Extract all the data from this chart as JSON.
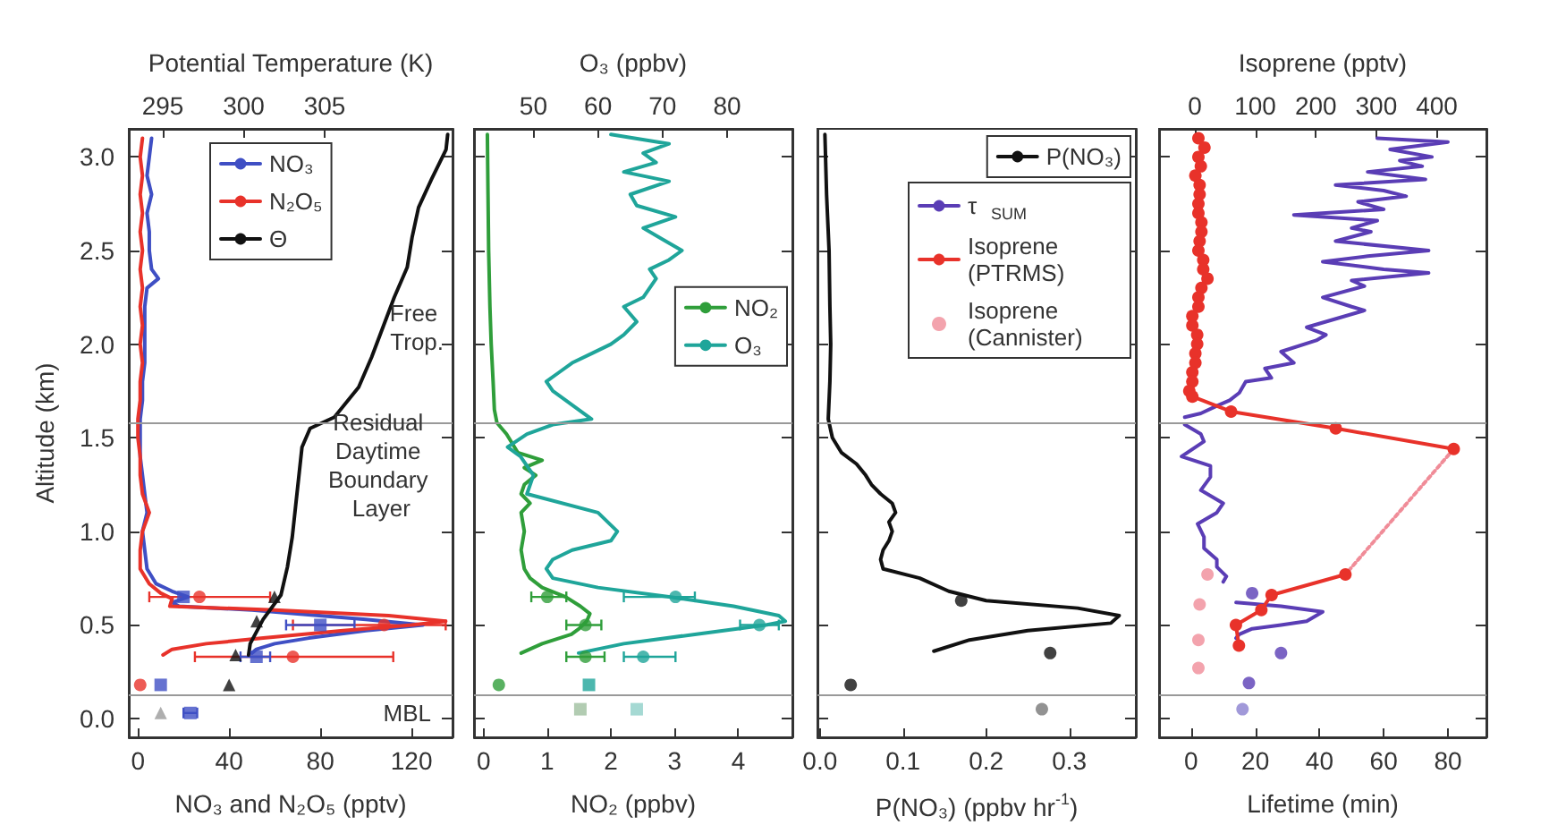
{
  "chart_data": [
    {
      "type": "line",
      "xlabel": "NO₃ and N₂O₅ (pptv)",
      "x2label": "Potential Temperature (K)",
      "ylabel": "Altitude (km)",
      "xlim": [
        -4,
        138
      ],
      "xticks": [
        0,
        40,
        80,
        120
      ],
      "x2lim": [
        292.9,
        312.9
      ],
      "x2ticks": [
        295,
        300,
        305
      ],
      "ylim": [
        -0.1,
        3.15
      ],
      "yticks": [
        {
          "value": 0,
          "label": "0.0"
        },
        {
          "value": 0.5,
          "label": "0.5"
        },
        {
          "value": 1,
          "label": "1.0"
        },
        {
          "value": 1.5,
          "label": "1.5"
        },
        {
          "value": 2,
          "label": "2.0"
        },
        {
          "value": 2.5,
          "label": "2.5"
        },
        {
          "value": 3,
          "label": "3.0"
        }
      ],
      "legend": "top",
      "ref_lines": [
        {
          "axis": "y",
          "value": 1.58,
          "color": "#999999"
        },
        {
          "axis": "y",
          "value": 0.13,
          "color": "#999999"
        }
      ],
      "annotations": [
        "Free Trop.",
        "Residual Daytime Boundary Layer",
        "MBL"
      ],
      "series": [
        {
          "name": "NO₃",
          "color": "#3f4fc4",
          "x": [
            6,
            5,
            4,
            6,
            4,
            5,
            5,
            6,
            9,
            4,
            3,
            3,
            3,
            3,
            2,
            2,
            1,
            1,
            1,
            2,
            3,
            4,
            2,
            3,
            4,
            8,
            15,
            22,
            15,
            18,
            50,
            70,
            100,
            125,
            100,
            75,
            60,
            52,
            50
          ],
          "values": [
            3.1,
            3.0,
            2.9,
            2.8,
            2.7,
            2.6,
            2.5,
            2.4,
            2.35,
            2.3,
            2.2,
            2.1,
            2.0,
            1.9,
            1.8,
            1.7,
            1.6,
            1.5,
            1.4,
            1.3,
            1.2,
            1.1,
            1.0,
            0.9,
            0.8,
            0.72,
            0.68,
            0.65,
            0.62,
            0.6,
            0.58,
            0.56,
            0.53,
            0.5,
            0.47,
            0.43,
            0.4,
            0.37,
            0.35
          ]
        },
        {
          "name": "N₂O₅",
          "color": "#e8322a",
          "x": [
            2,
            1,
            2,
            1,
            2,
            1,
            2,
            1,
            2,
            1,
            2,
            1,
            2,
            1,
            1,
            0,
            0,
            1,
            1,
            2,
            5,
            2,
            1,
            1,
            5,
            10,
            15,
            14,
            60,
            110,
            135,
            120,
            90,
            55,
            30,
            15,
            11
          ],
          "values": [
            3.1,
            3.0,
            2.9,
            2.8,
            2.7,
            2.6,
            2.5,
            2.4,
            2.3,
            2.2,
            2.1,
            2.0,
            1.9,
            1.8,
            1.7,
            1.6,
            1.5,
            1.4,
            1.3,
            1.2,
            1.1,
            1.0,
            0.9,
            0.8,
            0.72,
            0.67,
            0.64,
            0.6,
            0.58,
            0.55,
            0.52,
            0.5,
            0.47,
            0.43,
            0.4,
            0.37,
            0.34
          ]
        },
        {
          "name": "Θ",
          "color": "#111111",
          "axis": "x2",
          "x": [
            312.6,
            312.5,
            311.6,
            310.8,
            310.4,
            310.1,
            309.3,
            308.6,
            307.9,
            307.1,
            305.6,
            304.1,
            303.6,
            303.4,
            303.2,
            303.0,
            302.7,
            302.3,
            301.2,
            300.4,
            300.3
          ],
          "values": [
            3.12,
            3.04,
            2.88,
            2.73,
            2.57,
            2.41,
            2.25,
            2.09,
            1.93,
            1.77,
            1.61,
            1.55,
            1.45,
            1.29,
            1.13,
            0.97,
            0.81,
            0.66,
            0.53,
            0.4,
            0.34
          ]
        },
        {
          "type": "scatter",
          "marker": "circle",
          "color": "#e8322a",
          "x": [
            27,
            108,
            68,
            1
          ],
          "values": [
            0.65,
            0.5,
            0.33,
            0.18
          ],
          "xerrors": [
            [
              5,
              58
            ],
            [
              68,
              135
            ],
            [
              25,
              112
            ],
            null
          ]
        },
        {
          "type": "scatter",
          "marker": "square",
          "color": "#3f4fc4",
          "x": [
            20,
            80,
            52,
            10
          ],
          "values": [
            0.65,
            0.5,
            0.33,
            0.18
          ],
          "xerrors": [
            null,
            [
              65,
              95
            ],
            [
              45,
              58
            ],
            null
          ]
        },
        {
          "type": "scatter",
          "marker": "triangle",
          "color": "#111111",
          "axis": "x2",
          "x": [
            301.9,
            300.8,
            299.5,
            299.1
          ],
          "values": [
            0.65,
            0.52,
            0.34,
            0.18
          ]
        },
        {
          "type": "scatter",
          "marker": "triangle",
          "color": "#9a9a9a",
          "x": [
            10
          ],
          "values": [
            0.03
          ]
        },
        {
          "type": "scatter",
          "marker": "square",
          "color": "#3f4fc4",
          "x": [
            23
          ],
          "values": [
            0.03
          ],
          "xerrors": [
            [
              20,
              26
            ]
          ]
        }
      ]
    },
    {
      "type": "line",
      "xlabel": "NO₂ (ppbv)",
      "x2label": "O₃ (ppbv)",
      "xlim": [
        -0.15,
        4.85
      ],
      "xticks": [
        0,
        1,
        2,
        3,
        4
      ],
      "x2lim": [
        40.8,
        90.1
      ],
      "x2ticks": [
        50,
        60,
        70,
        80
      ],
      "ylim": [
        -0.1,
        3.15
      ],
      "yticks": [
        {
          "value": 0,
          "label": "0.0"
        },
        {
          "value": 0.5,
          "label": "0.5"
        },
        {
          "value": 1,
          "label": "1.0"
        },
        {
          "value": 1.5,
          "label": "1.5"
        },
        {
          "value": 2,
          "label": "2.0"
        },
        {
          "value": 2.5,
          "label": "2.5"
        },
        {
          "value": 3,
          "label": "3.0"
        }
      ],
      "tick_labels": "x",
      "legend": "right",
      "ref_lines": [
        {
          "axis": "y",
          "value": 1.58,
          "color": "#999999"
        },
        {
          "axis": "y",
          "value": 0.13,
          "color": "#999999"
        }
      ],
      "series": [
        {
          "name": "NO₂",
          "color": "#2f9e3a",
          "x": [
            0.06,
            0.07,
            0.08,
            0.1,
            0.12,
            0.15,
            0.17,
            0.21,
            0.36,
            0.45,
            0.54,
            0.92,
            0.64,
            0.82,
            0.64,
            0.59,
            0.73,
            0.59,
            0.64,
            0.59,
            0.64,
            0.73,
            0.92,
            1.29,
            1.52,
            1.67,
            1.62,
            1.5,
            1.38,
            0.92,
            0.59
          ],
          "values": [
            3.12,
            2.8,
            2.5,
            2.2,
            2.0,
            1.8,
            1.65,
            1.58,
            1.52,
            1.47,
            1.42,
            1.38,
            1.34,
            1.3,
            1.25,
            1.2,
            1.15,
            1.1,
            1.0,
            0.9,
            0.8,
            0.75,
            0.7,
            0.65,
            0.6,
            0.56,
            0.52,
            0.48,
            0.45,
            0.4,
            0.35
          ]
        },
        {
          "name": "O₃",
          "color": "#1fa59a",
          "axis": "x2",
          "x": [
            62,
            71,
            67,
            69,
            64,
            71,
            65,
            66,
            72,
            67,
            70,
            73,
            71,
            68,
            69,
            67,
            64,
            66,
            64,
            62,
            59,
            56,
            54,
            52,
            53,
            55,
            57,
            59,
            53,
            49,
            46,
            48,
            50,
            49,
            60,
            63,
            62,
            56,
            53,
            52,
            53,
            60,
            71,
            81,
            88,
            89,
            86,
            75,
            64,
            57
          ],
          "values": [
            3.12,
            3.07,
            3.02,
            2.97,
            2.92,
            2.87,
            2.8,
            2.74,
            2.68,
            2.62,
            2.56,
            2.5,
            2.45,
            2.4,
            2.35,
            2.25,
            2.2,
            2.12,
            2.05,
            2.0,
            1.95,
            1.9,
            1.85,
            1.8,
            1.75,
            1.7,
            1.65,
            1.6,
            1.57,
            1.52,
            1.45,
            1.4,
            1.3,
            1.2,
            1.1,
            1.0,
            0.95,
            0.9,
            0.85,
            0.8,
            0.75,
            0.7,
            0.65,
            0.6,
            0.55,
            0.52,
            0.5,
            0.45,
            0.4,
            0.35
          ]
        },
        {
          "type": "scatter",
          "marker": "circle",
          "color": "#2f9e3a",
          "x": [
            1.0,
            1.6,
            1.6,
            0.24
          ],
          "values": [
            0.65,
            0.5,
            0.33,
            0.18
          ],
          "xerrors": [
            [
              0.75,
              1.3
            ],
            [
              1.3,
              1.85
            ],
            [
              1.3,
              1.9
            ],
            null
          ]
        },
        {
          "type": "scatter",
          "marker": "circle",
          "color": "#1fa59a",
          "axis": "x2",
          "x": [
            72,
            85,
            67
          ],
          "values": [
            0.65,
            0.5,
            0.33
          ],
          "xerrors": [
            [
              64,
              75
            ],
            [
              82,
              88
            ],
            [
              64,
              72
            ]
          ]
        },
        {
          "type": "scatter",
          "marker": "square",
          "color": "#1fa59a",
          "axis": "x2",
          "x": [
            58.6
          ],
          "values": [
            0.18
          ]
        },
        {
          "type": "scatter",
          "marker": "square",
          "color": "#9fbf9f",
          "x": [
            1.52
          ],
          "values": [
            0.05
          ]
        },
        {
          "type": "scatter",
          "marker": "square",
          "color": "#8fcfc8",
          "axis": "x2",
          "x": [
            66
          ],
          "values": [
            0.05
          ]
        }
      ]
    },
    {
      "type": "line",
      "xlabel": "P(NO₃) (ppbv hr$^{-1}$)",
      "xlim": [
        -0.003,
        0.38
      ],
      "xticks": [
        {
          "value": 0,
          "label": "0.0"
        },
        {
          "value": 0.1,
          "label": "0.1"
        },
        {
          "value": 0.2,
          "label": "0.2"
        },
        {
          "value": 0.3,
          "label": "0.3"
        }
      ],
      "ylim": [
        -0.1,
        3.15
      ],
      "yticks": [
        {
          "value": 0,
          "label": "0.0"
        },
        {
          "value": 0.5,
          "label": "0.5"
        },
        {
          "value": 1,
          "label": "1.0"
        },
        {
          "value": 1.5,
          "label": "1.5"
        },
        {
          "value": 2,
          "label": "2.0"
        },
        {
          "value": 2.5,
          "label": "2.5"
        },
        {
          "value": 3,
          "label": "3.0"
        }
      ],
      "tick_labels": "x",
      "legend": "top right",
      "ref_lines": [
        {
          "axis": "y",
          "value": 1.58,
          "color": "#999999"
        },
        {
          "axis": "y",
          "value": 0.13,
          "color": "#999999"
        }
      ],
      "series": [
        {
          "name": "P(NO₃)",
          "color": "#111111",
          "x": [
            0.006,
            0.008,
            0.011,
            0.012,
            0.013,
            0.012,
            0.01,
            0.015,
            0.026,
            0.044,
            0.055,
            0.062,
            0.073,
            0.087,
            0.091,
            0.083,
            0.087,
            0.083,
            0.076,
            0.073,
            0.076,
            0.12,
            0.155,
            0.2,
            0.31,
            0.36,
            0.35,
            0.25,
            0.18,
            0.137
          ],
          "values": [
            3.12,
            2.8,
            2.5,
            2.2,
            2.0,
            1.8,
            1.6,
            1.5,
            1.42,
            1.36,
            1.3,
            1.25,
            1.2,
            1.15,
            1.1,
            1.05,
            1.0,
            0.95,
            0.9,
            0.85,
            0.8,
            0.75,
            0.68,
            0.63,
            0.59,
            0.55,
            0.51,
            0.47,
            0.42,
            0.36
          ]
        },
        {
          "type": "scatter",
          "marker": "circle",
          "color": "#111111",
          "x": [
            0.17,
            0.277,
            0.037
          ],
          "values": [
            0.63,
            0.35,
            0.18
          ]
        },
        {
          "type": "scatter",
          "marker": "circle",
          "color": "#777777",
          "x": [
            0.267
          ],
          "values": [
            0.05
          ]
        }
      ]
    },
    {
      "type": "line",
      "xlabel": "Lifetime (min)",
      "x2label": "Isoprene (pptv)",
      "xlim": [
        -10,
        92
      ],
      "xticks": [
        0,
        20,
        40,
        60,
        80
      ],
      "x2lim": [
        -59,
        482
      ],
      "x2ticks": [
        0,
        100,
        200,
        300,
        400
      ],
      "ylim": [
        -0.1,
        3.15
      ],
      "yticks": [
        {
          "value": 0,
          "label": "0.0"
        },
        {
          "value": 0.5,
          "label": "0.5"
        },
        {
          "value": 1,
          "label": "1.0"
        },
        {
          "value": 1.5,
          "label": "1.5"
        },
        {
          "value": 2,
          "label": "2.0"
        },
        {
          "value": 2.5,
          "label": "2.5"
        },
        {
          "value": 3,
          "label": "3.0"
        }
      ],
      "tick_labels": "x",
      "legend": "left",
      "ref_lines": [
        {
          "axis": "y",
          "value": 1.58,
          "color": "#999999"
        },
        {
          "axis": "y",
          "value": 0.13,
          "color": "#999999"
        }
      ],
      "series": [
        {
          "name": "τ$_{SUM}$",
          "color": "#5a3db5",
          "x": [
            58,
            80,
            62,
            75,
            65,
            72,
            55,
            73,
            45,
            60,
            67,
            52,
            60,
            32,
            58,
            50,
            56,
            45,
            74,
            55,
            41,
            60,
            74,
            50,
            54,
            41,
            50,
            54,
            42,
            36,
            42,
            39,
            28,
            32,
            23,
            25,
            17,
            15,
            12,
            8,
            3,
            -2,
            null,
            -2,
            3,
            4,
            -3,
            6,
            6,
            3,
            10,
            8,
            2,
            4,
            4,
            8,
            8,
            11,
            10,
            null,
            14,
            28,
            41,
            36,
            28,
            19,
            15,
            14
          ],
          "values": [
            3.1,
            3.08,
            3.04,
            3.0,
            2.98,
            2.95,
            2.92,
            2.88,
            2.85,
            2.82,
            2.79,
            2.76,
            2.72,
            2.69,
            2.66,
            2.62,
            2.6,
            2.55,
            2.5,
            2.47,
            2.44,
            2.4,
            2.38,
            2.34,
            2.31,
            2.25,
            2.2,
            2.18,
            2.12,
            2.09,
            2.05,
            2.02,
            1.96,
            1.9,
            1.87,
            1.82,
            1.8,
            1.74,
            1.7,
            1.67,
            1.63,
            1.61,
            null,
            1.57,
            1.52,
            1.48,
            1.4,
            1.35,
            1.29,
            1.22,
            1.15,
            1.1,
            1.04,
            0.97,
            0.91,
            0.85,
            0.81,
            0.76,
            0.73,
            null,
            0.62,
            0.6,
            0.57,
            0.52,
            0.5,
            0.48,
            0.45,
            0.43
          ]
        },
        {
          "name": "Isoprene (PTRMS)",
          "color": "#e8322a",
          "axis": "x2",
          "marker": "circle",
          "x": [
            6,
            16,
            6,
            10,
            1,
            8,
            8,
            6,
            6,
            11,
            11,
            8,
            6,
            14,
            14,
            21,
            11,
            6,
            6,
            -4,
            -4,
            4,
            4,
            1,
            1,
            -4,
            -4,
            -9,
            -4,
            60,
            233,
            428,
            null,
            249,
            127,
            110,
            68,
            73
          ],
          "values": [
            3.1,
            3.05,
            3.0,
            2.95,
            2.9,
            2.85,
            2.8,
            2.75,
            2.7,
            2.65,
            2.6,
            2.55,
            2.5,
            2.45,
            2.4,
            2.35,
            2.3,
            2.25,
            2.2,
            2.15,
            2.1,
            2.05,
            2.0,
            1.95,
            1.9,
            1.85,
            1.8,
            1.75,
            1.72,
            1.64,
            1.55,
            1.44,
            null,
            0.77,
            0.66,
            0.58,
            0.5,
            0.39
          ]
        },
        {
          "name": "Isoprene (Cannister)",
          "type": "scatter",
          "marker": "circle",
          "color": "#f08c98",
          "axis": "x2",
          "x": [
            21,
            8,
            6,
            6
          ],
          "values": [
            0.77,
            0.61,
            0.42,
            0.27
          ]
        },
        {
          "color": "#f08c98",
          "axis": "x2",
          "line_style": "dotted",
          "x": [
            428,
            249
          ],
          "values": [
            1.44,
            0.77
          ]
        },
        {
          "type": "scatter",
          "marker": "circle",
          "color": "#5a3db5",
          "x": [
            19,
            28,
            18
          ],
          "values": [
            0.67,
            0.35,
            0.19
          ]
        },
        {
          "type": "scatter",
          "marker": "circle",
          "color": "#8a7fd0",
          "x": [
            16
          ],
          "values": [
            0.05
          ]
        }
      ]
    }
  ]
}
